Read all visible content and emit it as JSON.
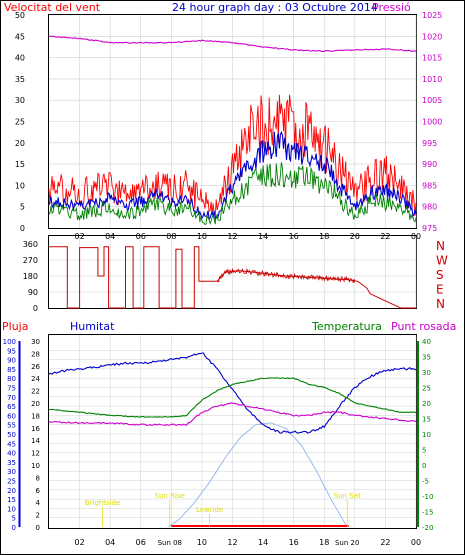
{
  "header": {
    "wind_title": "Velocitat del vent",
    "graph_title": "24 hour graph day : 03 Octubre 2014",
    "pressure_title": "Pressió"
  },
  "colors": {
    "red": "#ff0000",
    "dark_red": "#cc0000",
    "blue": "#0000cc",
    "green": "#008000",
    "magenta": "#cc00cc",
    "light_blue": "#99bbee",
    "yellow": "#dddd00",
    "grid": "#d0d0d0",
    "frame": "#000000"
  },
  "chart_data": [
    {
      "id": "wind-speed",
      "type": "line",
      "title": "Velocitat del vent",
      "right_label": "Pressió",
      "x_ticks": [
        "02",
        "04",
        "06",
        "08",
        "10",
        "12",
        "14",
        "16",
        "18",
        "20",
        "22",
        "00"
      ],
      "y_left": {
        "min": 0,
        "max": 50,
        "step": 5
      },
      "y_right": {
        "min": 975,
        "max": 1025,
        "step": 5
      },
      "series": [
        {
          "key": "gust",
          "color": "#ff0000",
          "axis": "left",
          "hours": [
            1,
            2,
            3,
            4,
            5,
            6,
            7,
            8,
            9,
            10,
            11,
            12,
            13,
            14,
            15,
            16,
            17,
            18,
            19,
            20,
            21,
            22,
            23,
            24
          ],
          "values": [
            9,
            8,
            9,
            10,
            8,
            9,
            11,
            9,
            10,
            6,
            5,
            14,
            21,
            25,
            25,
            24,
            22,
            20,
            14,
            8,
            11,
            13,
            10,
            5
          ]
        },
        {
          "key": "speed",
          "color": "#0000cc",
          "axis": "left",
          "hours": [
            1,
            2,
            3,
            4,
            5,
            6,
            7,
            8,
            9,
            10,
            11,
            12,
            13,
            14,
            15,
            16,
            17,
            18,
            19,
            20,
            21,
            22,
            23,
            24
          ],
          "values": [
            6,
            5,
            6,
            7,
            5,
            6,
            8,
            6,
            7,
            3,
            3,
            10,
            15,
            18,
            20,
            18,
            17,
            15,
            10,
            5,
            8,
            9,
            7,
            3
          ]
        },
        {
          "key": "average",
          "color": "#008000",
          "axis": "left",
          "hours": [
            1,
            2,
            3,
            4,
            5,
            6,
            7,
            8,
            9,
            10,
            11,
            12,
            13,
            14,
            15,
            16,
            17,
            18,
            19,
            20,
            21,
            22,
            23,
            24
          ],
          "values": [
            4,
            3,
            4,
            5,
            3,
            4,
            6,
            4,
            5,
            2,
            2,
            7,
            10,
            12,
            13,
            12,
            12,
            10,
            7,
            3,
            6,
            6,
            5,
            2
          ]
        },
        {
          "key": "pressure",
          "color": "#cc00cc",
          "axis": "right",
          "hours": [
            0,
            2,
            4,
            6,
            8,
            10,
            12,
            14,
            16,
            18,
            20,
            22,
            24
          ],
          "values": [
            1020,
            1019.5,
            1018.5,
            1018.5,
            1018.5,
            1019,
            1018.5,
            1017.5,
            1016.8,
            1016.5,
            1016.8,
            1017,
            1016.5
          ]
        }
      ]
    },
    {
      "id": "wind-direction",
      "type": "line",
      "y_ticks": [
        0,
        90,
        180,
        270,
        360
      ],
      "compass_labels": [
        "N",
        "W",
        "S",
        "E",
        "N"
      ],
      "series": [
        {
          "key": "direction",
          "color": "#cc0000",
          "hours": [
            0,
            1.2,
            1.2,
            2.0,
            2.0,
            3.2,
            3.2,
            3.6,
            3.6,
            3.9,
            3.9,
            5.0,
            5.0,
            5.5,
            5.5,
            6.2,
            6.2,
            7.2,
            7.2,
            8.3,
            8.3,
            8.7,
            8.7,
            9.5,
            9.5,
            9.8,
            9.8,
            11.0,
            11.5,
            12.5,
            13.5,
            14.5,
            15.5,
            16.5,
            17.5,
            18.5,
            19.5,
            20.2,
            20.8,
            21.0,
            21.5,
            22.0,
            22.5,
            23.0,
            24.0
          ],
          "values": [
            345,
            345,
            0,
            0,
            340,
            340,
            180,
            180,
            345,
            345,
            0,
            0,
            345,
            345,
            0,
            0,
            345,
            345,
            0,
            0,
            330,
            330,
            0,
            0,
            345,
            345,
            150,
            150,
            200,
            210,
            200,
            190,
            180,
            175,
            170,
            165,
            160,
            150,
            110,
            80,
            60,
            40,
            20,
            0,
            0
          ]
        }
      ]
    },
    {
      "id": "humidity-temperature",
      "type": "line",
      "legend": [
        "Pluja",
        "Humitat",
        "Temperatura",
        "Punt rosada"
      ],
      "y_rain": {
        "min": 0,
        "max": 30,
        "step": 2
      },
      "y_humidity": {
        "min": 0,
        "max": 100,
        "step": 5
      },
      "y_temperature": {
        "min": -20,
        "max": 40,
        "step": 5
      },
      "x_ticks": [
        "02",
        "04",
        "06",
        "08",
        "10",
        "12",
        "14",
        "16",
        "18",
        "20",
        "22",
        "00"
      ],
      "annotations": [
        {
          "text": "Sun Rise",
          "hour": 7.9
        },
        {
          "text": "Sun Set",
          "hour": 19.5
        },
        {
          "text": "Brightside",
          "hour": 3.5
        },
        {
          "text": "Lowtide",
          "hour": 10.5
        }
      ],
      "bottom_time_labels": [
        "Sun 08",
        "Sun 20"
      ],
      "series": [
        {
          "key": "humidity",
          "color": "#0000cc",
          "axis": "humidity",
          "hours": [
            0,
            1,
            2,
            3,
            4,
            5,
            6,
            7,
            8,
            9,
            10,
            11,
            12,
            13,
            14,
            15,
            16,
            17,
            18,
            19,
            20,
            21,
            22,
            23,
            24
          ],
          "values": [
            82,
            84,
            85,
            86,
            87,
            88,
            88,
            89,
            90,
            91,
            94,
            85,
            74,
            63,
            55,
            51,
            51,
            51,
            54,
            65,
            75,
            81,
            84,
            85,
            85
          ]
        },
        {
          "key": "temperature",
          "color": "#008000",
          "axis": "temperature",
          "hours": [
            0,
            2,
            4,
            6,
            8,
            9,
            10,
            11,
            12,
            13,
            14,
            15,
            16,
            17,
            18,
            19,
            20,
            21,
            22,
            23,
            24
          ],
          "values": [
            18,
            17,
            16,
            15.5,
            15.5,
            16,
            21,
            24,
            26,
            27,
            28,
            28,
            28,
            26,
            25,
            23,
            20,
            19,
            18,
            17,
            17
          ]
        },
        {
          "key": "dewpoint",
          "color": "#cc00cc",
          "axis": "temperature",
          "hours": [
            0,
            2,
            4,
            6,
            8,
            9,
            10,
            11,
            12,
            13,
            14,
            15,
            16,
            17,
            18,
            19,
            20,
            21,
            22,
            23,
            24
          ],
          "values": [
            14,
            13.5,
            13.5,
            13,
            13,
            13,
            17,
            19,
            20,
            19,
            18,
            17,
            16,
            16,
            17,
            17,
            16,
            15.5,
            15,
            14.5,
            14
          ]
        },
        {
          "key": "solar",
          "color": "#99bbee",
          "axis": "humidity",
          "hours": [
            7.8,
            8.5,
            9.5,
            10.5,
            11.5,
            12.5,
            13.5,
            14.5,
            15.5,
            16.5,
            17.5,
            18.5,
            19.5
          ],
          "values": [
            0,
            4,
            13,
            24,
            37,
            48,
            55,
            56,
            53,
            44,
            30,
            14,
            0
          ]
        },
        {
          "key": "rain",
          "color": "#ff0000",
          "axis": "rain",
          "hours": [
            8,
            19.6
          ],
          "values": [
            0,
            0
          ]
        }
      ]
    }
  ]
}
